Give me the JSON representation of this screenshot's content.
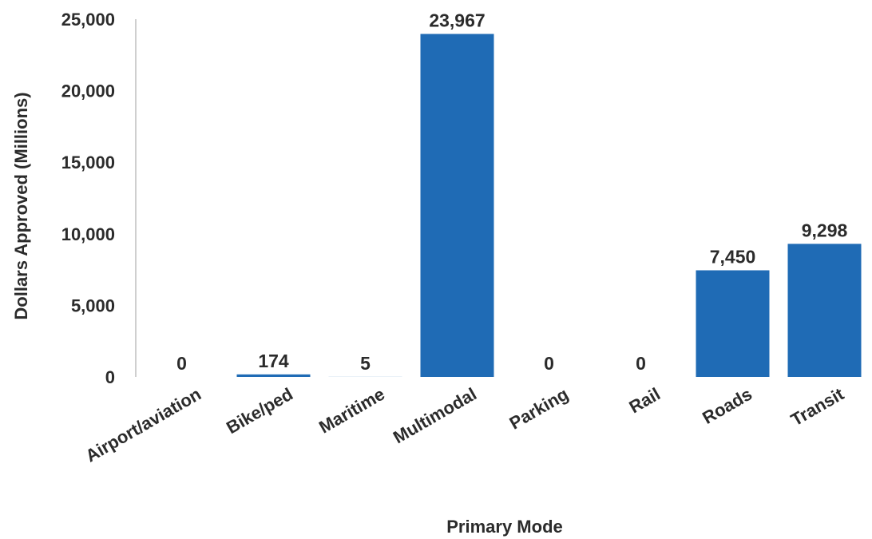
{
  "chart_data": {
    "type": "bar",
    "title": "",
    "xlabel": "Primary Mode",
    "ylabel": "Dollars Approved (Millions)",
    "categories": [
      "Airport/aviation",
      "Bike/ped",
      "Maritime",
      "Multimodal",
      "Parking",
      "Rail",
      "Roads",
      "Transit"
    ],
    "values": [
      0,
      174,
      5,
      23967,
      0,
      0,
      7450,
      9298
    ],
    "data_labels": [
      "0",
      "174",
      "5",
      "23,967",
      "0",
      "0",
      "7,450",
      "9,298"
    ],
    "ylim": [
      0,
      25000
    ],
    "yticks": [
      0,
      5000,
      10000,
      15000,
      20000,
      25000
    ],
    "ytick_labels": [
      "0",
      "5,000",
      "10,000",
      "15,000",
      "20,000",
      "25,000"
    ],
    "grid": false,
    "legend": "none",
    "bar_color": "#1f6bb5",
    "axis_color": "#bfbfbf",
    "text_color": "#2b2b2b"
  }
}
